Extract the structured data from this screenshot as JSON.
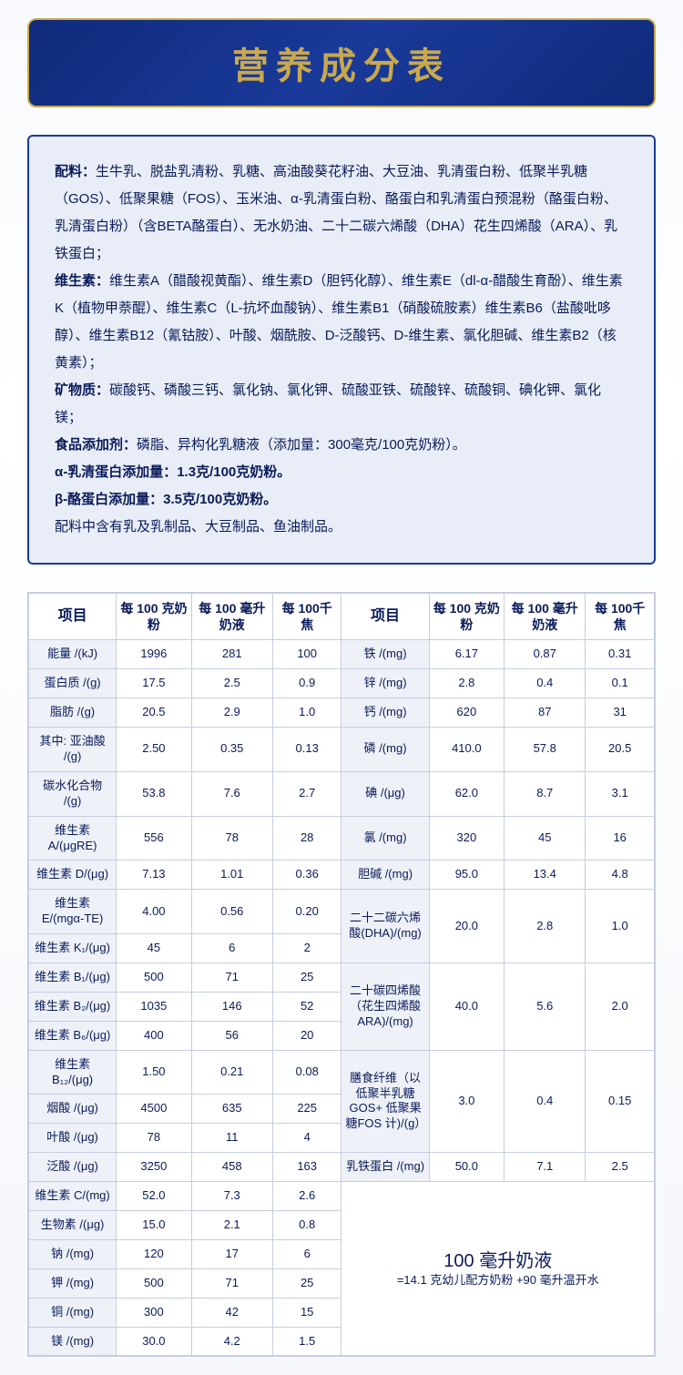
{
  "title": "营养成分表",
  "colors": {
    "primary": "#0a1a5a",
    "accent": "#c9a94d",
    "panel_bg": "#e8edf7",
    "border": "#c5cde0",
    "row_label_bg": "#eef1f8"
  },
  "ingredients": {
    "peiliao_label": "配料：",
    "peiliao_text": "生牛乳、脱盐乳清粉、乳糖、高油酸葵花籽油、大豆油、乳清蛋白粉、低聚半乳糖（GOS）、低聚果糖（FOS）、玉米油、α-乳清蛋白粉、酪蛋白和乳清蛋白预混粉（酪蛋白粉、乳清蛋白粉）（含BETA酪蛋白）、无水奶油、二十二碳六烯酸（DHA）花生四烯酸（ARA）、乳铁蛋白；",
    "vitamin_label": "维生素：",
    "vitamin_text": "维生素A（醋酸视黄酯）、维生素D（胆钙化醇）、维生素E（dl-α-醋酸生育酚）、维生素K（植物甲萘醌）、维生素C（L-抗坏血酸钠）、维生素B1（硝酸硫胺素）维生素B6（盐酸吡哆醇）、维生素B12（氰钴胺）、叶酸、烟酰胺、D-泛酸钙、D-维生素、氯化胆碱、维生素B2（核黄素）；",
    "mineral_label": "矿物质：",
    "mineral_text": "碳酸钙、磷酸三钙、氯化钠、氯化钾、硫酸亚铁、硫酸锌、硫酸铜、碘化钾、氯化镁；",
    "additive_label": "食品添加剂：",
    "additive_text": "磷脂、异构化乳糖液（添加量：300毫克/100克奶粉）。",
    "alpha_line": "α-乳清蛋白添加量：1.3克/100克奶粉。",
    "beta_line": "β-酪蛋白添加量：3.5克/100克奶粉。",
    "allergen_line": "配料中含有乳及乳制品、大豆制品、鱼油制品。"
  },
  "table": {
    "headers": {
      "item": "项目",
      "per100g": "每 100 克奶粉",
      "per100ml": "每 100 毫升奶液",
      "per100kj": "每 100千焦"
    },
    "left_rows": [
      {
        "label": "能量 /(kJ)",
        "a": "1996",
        "b": "281",
        "c": "100"
      },
      {
        "label": "蛋白质 /(g)",
        "a": "17.5",
        "b": "2.5",
        "c": "0.9"
      },
      {
        "label": "脂肪 /(g)",
        "a": "20.5",
        "b": "2.9",
        "c": "1.0"
      },
      {
        "label": "其中: 亚油酸 /(g)",
        "a": "2.50",
        "b": "0.35",
        "c": "0.13"
      },
      {
        "label": "碳水化合物 /(g)",
        "a": "53.8",
        "b": "7.6",
        "c": "2.7"
      },
      {
        "label": "维生素 A/(μgRE)",
        "a": "556",
        "b": "78",
        "c": "28"
      },
      {
        "label": "维生素 D/(μg)",
        "a": "7.13",
        "b": "1.01",
        "c": "0.36"
      },
      {
        "label": "维生素 E/(mgα-TE)",
        "a": "4.00",
        "b": "0.56",
        "c": "0.20"
      },
      {
        "label": "维生素 K₁/(μg)",
        "a": "45",
        "b": "6",
        "c": "2"
      },
      {
        "label": "维生素 B₁/(μg)",
        "a": "500",
        "b": "71",
        "c": "25"
      },
      {
        "label": "维生素 B₂/(μg)",
        "a": "1035",
        "b": "146",
        "c": "52"
      },
      {
        "label": "维生素 B₆/(μg)",
        "a": "400",
        "b": "56",
        "c": "20"
      },
      {
        "label": "维生素 B₁₂/(μg)",
        "a": "1.50",
        "b": "0.21",
        "c": "0.08"
      },
      {
        "label": "烟酸 /(μg)",
        "a": "4500",
        "b": "635",
        "c": "225"
      },
      {
        "label": "叶酸 /(μg)",
        "a": "78",
        "b": "11",
        "c": "4"
      },
      {
        "label": "泛酸 /(μg)",
        "a": "3250",
        "b": "458",
        "c": "163"
      },
      {
        "label": "维生素 C/(mg)",
        "a": "52.0",
        "b": "7.3",
        "c": "2.6"
      },
      {
        "label": "生物素 /(μg)",
        "a": "15.0",
        "b": "2.1",
        "c": "0.8"
      },
      {
        "label": "钠 /(mg)",
        "a": "120",
        "b": "17",
        "c": "6"
      },
      {
        "label": "钾 /(mg)",
        "a": "500",
        "b": "71",
        "c": "25"
      },
      {
        "label": "铜 /(mg)",
        "a": "300",
        "b": "42",
        "c": "15"
      },
      {
        "label": "镁 /(mg)",
        "a": "30.0",
        "b": "4.2",
        "c": "1.5"
      }
    ],
    "right_rows": [
      {
        "label": "铁 /(mg)",
        "a": "6.17",
        "b": "0.87",
        "c": "0.31",
        "span": 1
      },
      {
        "label": "锌 /(mg)",
        "a": "2.8",
        "b": "0.4",
        "c": "0.1",
        "span": 1
      },
      {
        "label": "钙 /(mg)",
        "a": "620",
        "b": "87",
        "c": "31",
        "span": 1
      },
      {
        "label": "磷 /(mg)",
        "a": "410.0",
        "b": "57.8",
        "c": "20.5",
        "span": 1
      },
      {
        "label": "碘 /(μg)",
        "a": "62.0",
        "b": "8.7",
        "c": "3.1",
        "span": 1
      },
      {
        "label": "氯 /(mg)",
        "a": "320",
        "b": "45",
        "c": "16",
        "span": 1
      },
      {
        "label": "胆碱 /(mg)",
        "a": "95.0",
        "b": "13.4",
        "c": "4.8",
        "span": 1
      },
      {
        "label": "二十二碳六烯酸(DHA)/(mg)",
        "a": "20.0",
        "b": "2.8",
        "c": "1.0",
        "span": 2
      },
      {
        "label": "二十碳四烯酸（花生四烯酸ARA)/(mg)",
        "a": "40.0",
        "b": "5.6",
        "c": "2.0",
        "span": 3
      },
      {
        "label": "膳食纤维（以低聚半乳糖GOS+ 低聚果糖FOS 计)/(g）",
        "a": "3.0",
        "b": "0.4",
        "c": "0.15",
        "span": 3
      },
      {
        "label": "乳铁蛋白 /(mg)",
        "a": "50.0",
        "b": "7.1",
        "c": "2.5",
        "span": 1
      }
    ],
    "reconstitution": {
      "line1": "100 毫升奶液",
      "line2": "=14.1 克幼儿配方奶粉 +90 毫升温开水",
      "span": 6
    }
  }
}
